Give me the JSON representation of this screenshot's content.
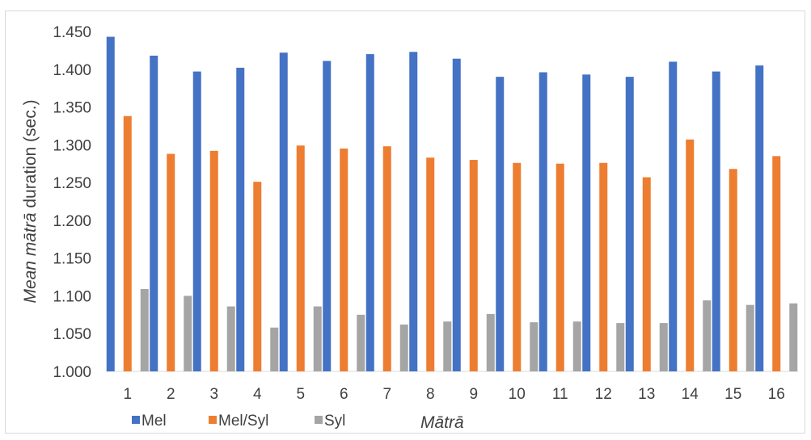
{
  "chart_data": {
    "type": "bar",
    "categories": [
      "1",
      "2",
      "3",
      "4",
      "5",
      "6",
      "7",
      "8",
      "9",
      "10",
      "11",
      "12",
      "13",
      "14",
      "15",
      "16"
    ],
    "series": [
      {
        "name": "Mel",
        "color": "#4472c4",
        "values": [
          1.443,
          1.418,
          1.397,
          1.402,
          1.422,
          1.411,
          1.42,
          1.423,
          1.414,
          1.39,
          1.396,
          1.393,
          1.39,
          1.41,
          1.397,
          1.405
        ]
      },
      {
        "name": "Mel/Syl",
        "color": "#ed7d31",
        "values": [
          1.338,
          1.288,
          1.292,
          1.251,
          1.299,
          1.295,
          1.298,
          1.283,
          1.28,
          1.276,
          1.275,
          1.276,
          1.257,
          1.307,
          1.268,
          1.285
        ]
      },
      {
        "name": "Syl",
        "color": "#a5a5a5",
        "values": [
          1.109,
          1.1,
          1.086,
          1.058,
          1.086,
          1.075,
          1.062,
          1.066,
          1.076,
          1.065,
          1.066,
          1.064,
          1.064,
          1.094,
          1.088,
          1.09
        ]
      }
    ],
    "ylim": [
      1.0,
      1.45
    ],
    "yticks": [
      "1.000",
      "1.050",
      "1.100",
      "1.150",
      "1.200",
      "1.250",
      "1.300",
      "1.350",
      "1.400",
      "1.450"
    ],
    "ylabel_italic": "Mean mātrā",
    "ylabel_rest": " duration (sec.)",
    "xlabel": "Mātrā",
    "grid": false,
    "legend_position": "bottom-left"
  }
}
